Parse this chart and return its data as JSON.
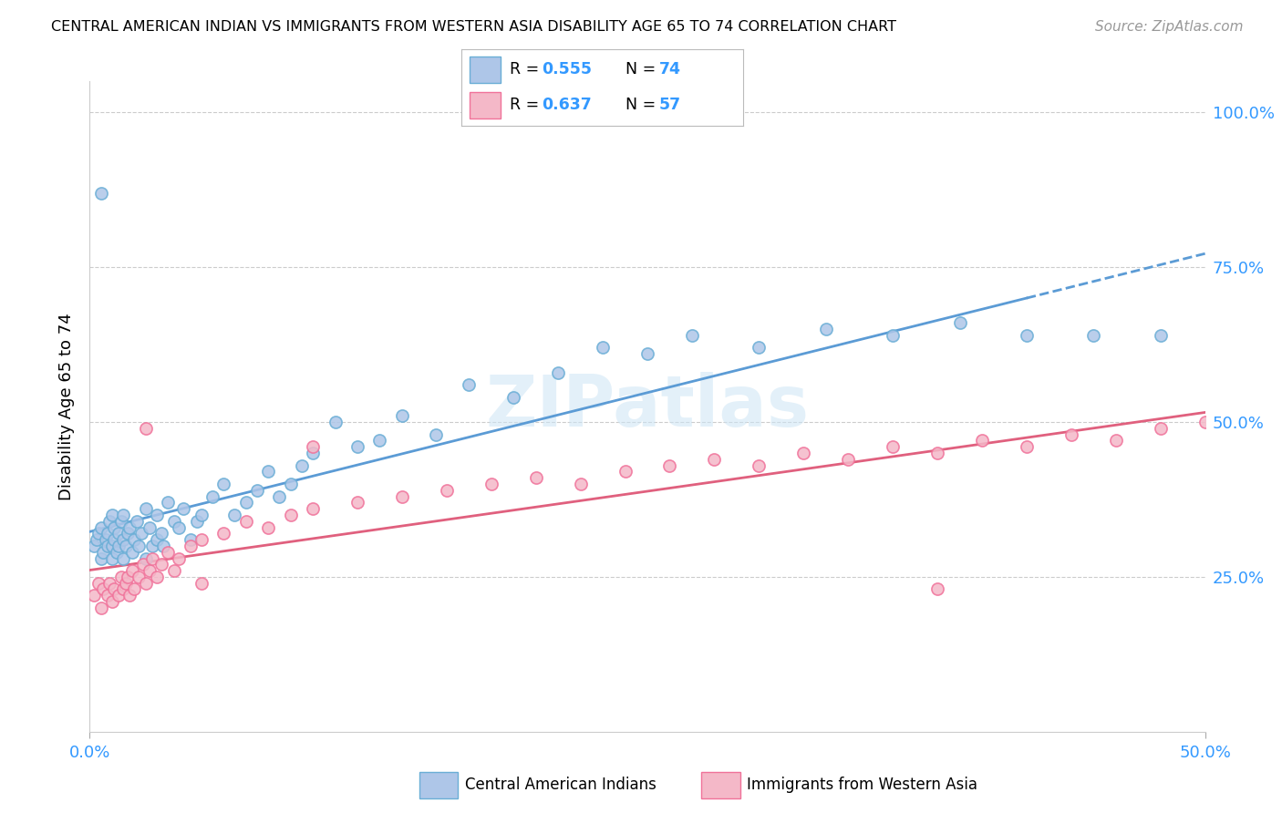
{
  "title": "CENTRAL AMERICAN INDIAN VS IMMIGRANTS FROM WESTERN ASIA DISABILITY AGE 65 TO 74 CORRELATION CHART",
  "source": "Source: ZipAtlas.com",
  "ylabel": "Disability Age 65 to 74",
  "xlim": [
    0.0,
    0.5
  ],
  "ylim": [
    0.0,
    1.05
  ],
  "r_blue": 0.555,
  "n_blue": 74,
  "r_pink": 0.637,
  "n_pink": 57,
  "color_blue_fill": "#aec6e8",
  "color_blue_edge": "#6aaed6",
  "color_pink_fill": "#f4b8c8",
  "color_pink_edge": "#f0729a",
  "color_blue_line": "#5b9bd5",
  "color_pink_line": "#e0607e",
  "watermark": "ZIPatlas",
  "blue_x": [
    0.002,
    0.003,
    0.004,
    0.005,
    0.005,
    0.006,
    0.007,
    0.008,
    0.008,
    0.009,
    0.01,
    0.01,
    0.01,
    0.011,
    0.011,
    0.012,
    0.013,
    0.013,
    0.014,
    0.015,
    0.015,
    0.015,
    0.016,
    0.017,
    0.018,
    0.019,
    0.02,
    0.021,
    0.022,
    0.023,
    0.025,
    0.025,
    0.027,
    0.028,
    0.03,
    0.03,
    0.032,
    0.033,
    0.035,
    0.038,
    0.04,
    0.042,
    0.045,
    0.048,
    0.05,
    0.055,
    0.06,
    0.065,
    0.07,
    0.075,
    0.08,
    0.085,
    0.09,
    0.095,
    0.1,
    0.11,
    0.12,
    0.13,
    0.14,
    0.155,
    0.17,
    0.19,
    0.21,
    0.23,
    0.25,
    0.27,
    0.3,
    0.33,
    0.36,
    0.39,
    0.42,
    0.45,
    0.48,
    0.005
  ],
  "blue_y": [
    0.3,
    0.31,
    0.32,
    0.28,
    0.33,
    0.29,
    0.31,
    0.3,
    0.32,
    0.34,
    0.28,
    0.3,
    0.35,
    0.31,
    0.33,
    0.29,
    0.3,
    0.32,
    0.34,
    0.28,
    0.31,
    0.35,
    0.3,
    0.32,
    0.33,
    0.29,
    0.31,
    0.34,
    0.3,
    0.32,
    0.28,
    0.36,
    0.33,
    0.3,
    0.31,
    0.35,
    0.32,
    0.3,
    0.37,
    0.34,
    0.33,
    0.36,
    0.31,
    0.34,
    0.35,
    0.38,
    0.4,
    0.35,
    0.37,
    0.39,
    0.42,
    0.38,
    0.4,
    0.43,
    0.45,
    0.5,
    0.46,
    0.47,
    0.51,
    0.48,
    0.56,
    0.54,
    0.58,
    0.62,
    0.61,
    0.64,
    0.62,
    0.65,
    0.64,
    0.66,
    0.64,
    0.64,
    0.64,
    0.87
  ],
  "pink_x": [
    0.002,
    0.004,
    0.005,
    0.006,
    0.008,
    0.009,
    0.01,
    0.011,
    0.013,
    0.014,
    0.015,
    0.016,
    0.017,
    0.018,
    0.019,
    0.02,
    0.022,
    0.024,
    0.025,
    0.027,
    0.028,
    0.03,
    0.032,
    0.035,
    0.038,
    0.04,
    0.045,
    0.05,
    0.06,
    0.07,
    0.08,
    0.09,
    0.1,
    0.12,
    0.14,
    0.16,
    0.18,
    0.2,
    0.22,
    0.24,
    0.26,
    0.28,
    0.3,
    0.32,
    0.34,
    0.36,
    0.38,
    0.4,
    0.42,
    0.44,
    0.46,
    0.48,
    0.5,
    0.025,
    0.05,
    0.1,
    0.38
  ],
  "pink_y": [
    0.22,
    0.24,
    0.2,
    0.23,
    0.22,
    0.24,
    0.21,
    0.23,
    0.22,
    0.25,
    0.23,
    0.24,
    0.25,
    0.22,
    0.26,
    0.23,
    0.25,
    0.27,
    0.24,
    0.26,
    0.28,
    0.25,
    0.27,
    0.29,
    0.26,
    0.28,
    0.3,
    0.31,
    0.32,
    0.34,
    0.33,
    0.35,
    0.36,
    0.37,
    0.38,
    0.39,
    0.4,
    0.41,
    0.4,
    0.42,
    0.43,
    0.44,
    0.43,
    0.45,
    0.44,
    0.46,
    0.45,
    0.47,
    0.46,
    0.48,
    0.47,
    0.49,
    0.5,
    0.49,
    0.24,
    0.46,
    0.23
  ]
}
